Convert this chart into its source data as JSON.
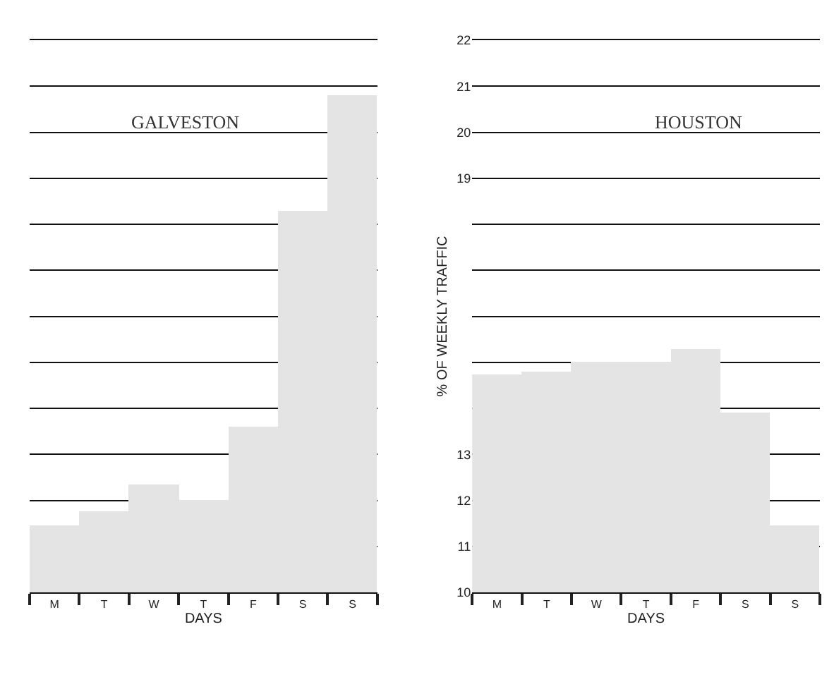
{
  "chart_data": [
    {
      "type": "bar",
      "title": "GALVESTON",
      "xlabel": "DAYS",
      "categories": [
        "M",
        "T",
        "W",
        "T",
        "F",
        "S",
        "S"
      ],
      "values": [
        11.45,
        11.75,
        12.35,
        12.0,
        13.6,
        18.3,
        20.8
      ],
      "color": "#e4e4e4",
      "ylim": [
        10,
        22
      ],
      "yticks": [
        10,
        11,
        12,
        13,
        {
          "value": 14,
          "label": null
        },
        {
          "value": 15,
          "label": null
        },
        {
          "value": 16,
          "label": null
        },
        {
          "value": 17,
          "label": null
        },
        {
          "value": 18,
          "label": null
        },
        19,
        20,
        21,
        22
      ],
      "grid": "y",
      "tick_labels": "x"
    },
    {
      "type": "bar",
      "title": "HOUSTON",
      "xlabel": "DAYS",
      "ylabel": "% OF WEEKLY TRAFFIC",
      "categories": [
        "M",
        "T",
        "W",
        "T",
        "F",
        "S",
        "S"
      ],
      "values": [
        14.75,
        14.8,
        15.0,
        15.0,
        15.3,
        13.9,
        11.45
      ],
      "color": "#e4e4e4",
      "ylim": [
        10,
        22
      ],
      "yticks": [
        10,
        11,
        12,
        13,
        {
          "value": 14,
          "label": null
        },
        {
          "value": 15,
          "label": null
        },
        {
          "value": 16,
          "label": null
        },
        {
          "value": 17,
          "label": null
        },
        {
          "value": 18,
          "label": null
        },
        19,
        20,
        21,
        22
      ],
      "grid": "y"
    }
  ]
}
